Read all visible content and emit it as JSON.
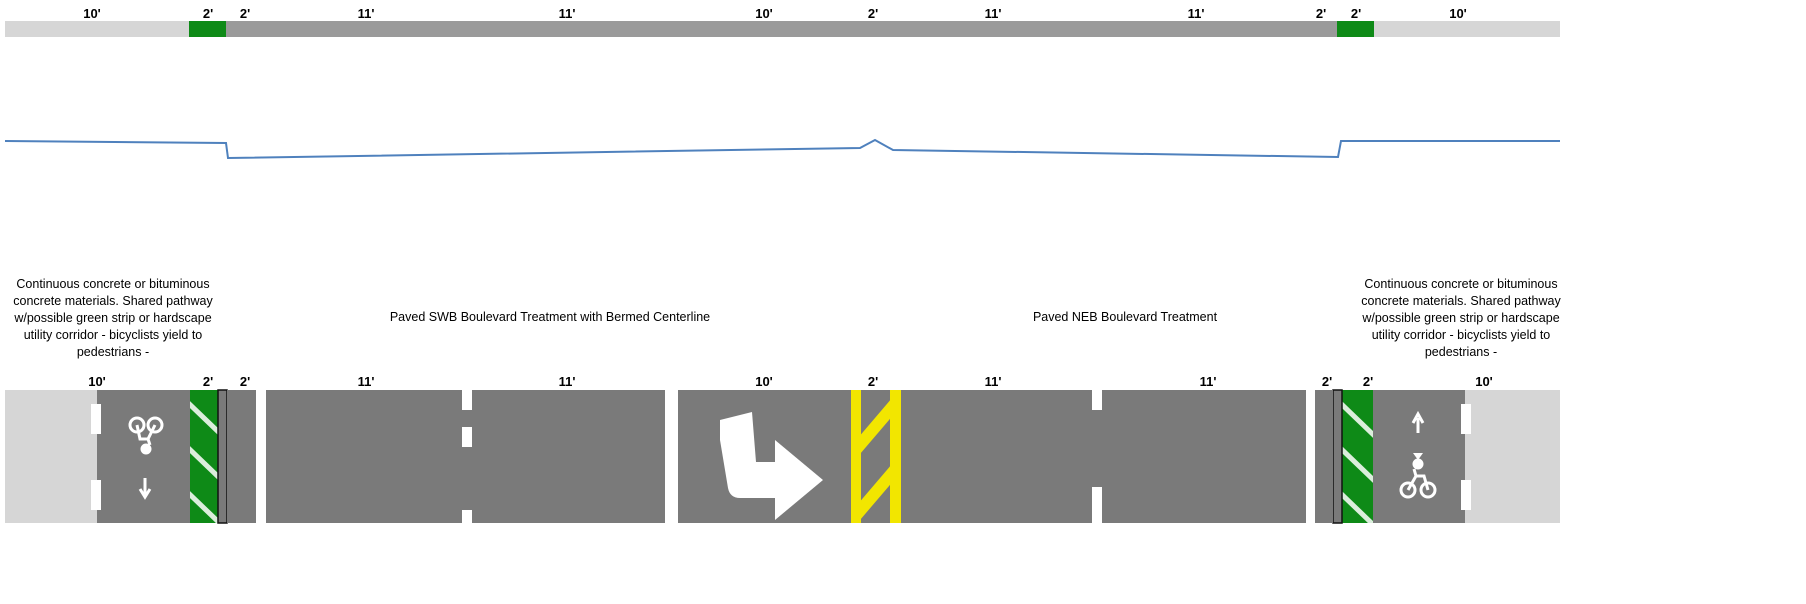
{
  "top_section": {
    "dimension_labels": [
      "10'",
      "2'",
      "2'",
      "11'",
      "11'",
      "10'",
      "2'",
      "11'",
      "11'",
      "2'",
      "2'",
      "10'"
    ]
  },
  "plan_section": {
    "dimension_labels": [
      "10'",
      "2'",
      "2'",
      "11'",
      "11'",
      "10'",
      "2'",
      "11'",
      "11'",
      "2'",
      "2'",
      "10'"
    ]
  },
  "notes": {
    "left_pathway": "Continuous concrete or bituminous concrete materials.   Shared pathway w/possible green strip or hardscape utility corridor   - bicyclists yield to pedestrians -",
    "swb_treatment": "Paved SWB Boulevard Treatment with  Bermed Centerline",
    "neb_treatment": "Paved NEB Boulevard Treatment",
    "right_pathway": "Continuous concrete or bituminous concrete materials.   Shared pathway w/possible green strip or hardscape utility corridor   - bicyclists yield to pedestrians -"
  },
  "colors": {
    "pathway": "#d6d6d6",
    "pavement": "#7a7a7a",
    "pavement_top": "#9a9a9a",
    "green_strip": "#0e8a17",
    "centerline_yellow": "#f2e600",
    "profile_line": "#4f81bd",
    "marking_white": "#ffffff"
  },
  "icons": [
    "bicycle-icon",
    "arrow-down-icon",
    "arrow-up-icon",
    "turn-arrow-icon"
  ]
}
